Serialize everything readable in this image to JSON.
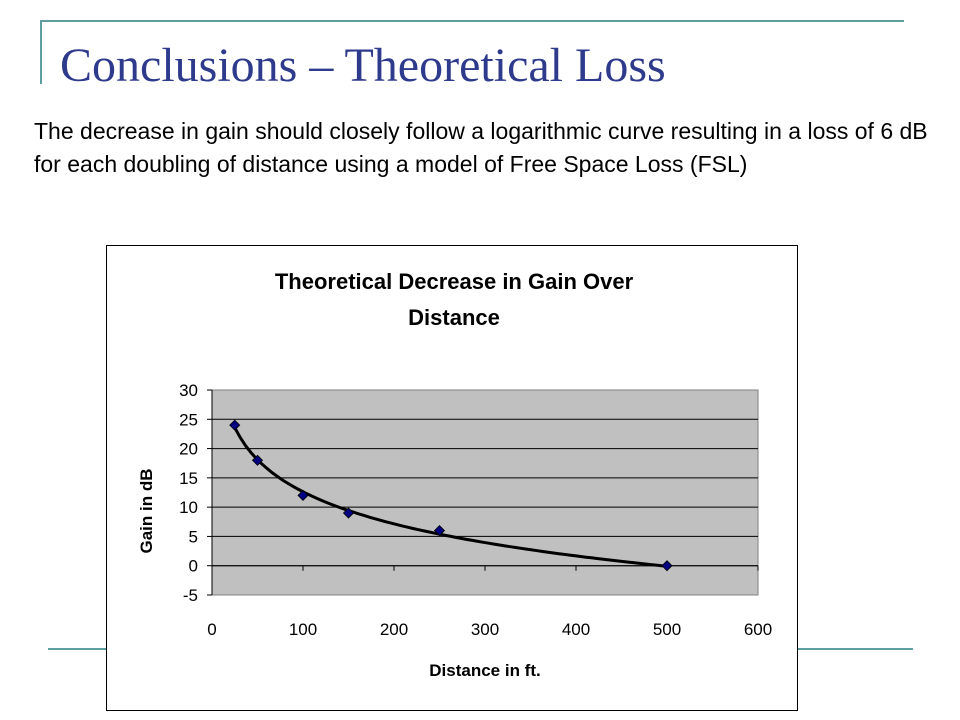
{
  "slide": {
    "title": "Conclusions – Theoretical Loss",
    "body": "The decrease in gain should closely follow a logarithmic curve resulting in a loss of 6 dB for each doubling of distance using a model of Free Space Loss (FSL)"
  },
  "colors": {
    "frame": "#5f9ea0",
    "title": "#2e3a8c",
    "plot_area": "#c0c0c0",
    "marker": "#000080",
    "curve": "#000000"
  },
  "chart_data": {
    "type": "scatter",
    "title_lines": [
      "Theoretical Decrease in Gain Over",
      "Distance"
    ],
    "xlabel": "Distance in ft.",
    "ylabel": "Gain in dB",
    "xlim": [
      0,
      600
    ],
    "ylim": [
      -5,
      30
    ],
    "xticks": [
      0,
      100,
      200,
      300,
      400,
      500,
      600
    ],
    "yticks": [
      -5,
      0,
      5,
      10,
      15,
      20,
      25,
      30
    ],
    "grid": "horizontal",
    "legend": "none",
    "series": [
      {
        "x": [
          25,
          50,
          100,
          150,
          250,
          500
        ],
        "y": [
          24,
          18,
          12,
          9,
          6,
          0
        ],
        "marker": "diamond",
        "line": "smoothed"
      }
    ]
  }
}
